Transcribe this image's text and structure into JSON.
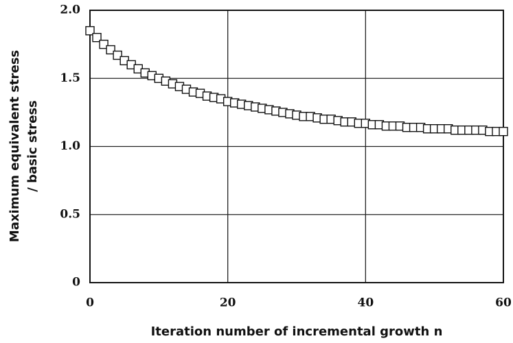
{
  "chart_data": {
    "type": "scatter",
    "xlabel": "Iteration number of incremental growth n",
    "ylabel": [
      "Maximum equivalent stress",
      "/ basic stress"
    ],
    "x": [
      0,
      1,
      2,
      3,
      4,
      5,
      6,
      7,
      8,
      9,
      10,
      11,
      12,
      13,
      14,
      15,
      16,
      17,
      18,
      19,
      20,
      21,
      22,
      23,
      24,
      25,
      26,
      27,
      28,
      29,
      30,
      31,
      32,
      33,
      34,
      35,
      36,
      37,
      38,
      39,
      40,
      41,
      42,
      43,
      44,
      45,
      46,
      47,
      48,
      49,
      50,
      51,
      52,
      53,
      54,
      55,
      56,
      57,
      58,
      59,
      60
    ],
    "series": [
      {
        "name": "stress",
        "color": "#111111",
        "values": [
          1.85,
          1.8,
          1.75,
          1.71,
          1.67,
          1.63,
          1.6,
          1.57,
          1.54,
          1.52,
          1.5,
          1.48,
          1.46,
          1.44,
          1.42,
          1.4,
          1.39,
          1.37,
          1.36,
          1.35,
          1.33,
          1.32,
          1.31,
          1.3,
          1.29,
          1.28,
          1.27,
          1.26,
          1.25,
          1.24,
          1.23,
          1.22,
          1.22,
          1.21,
          1.2,
          1.2,
          1.19,
          1.18,
          1.18,
          1.17,
          1.17,
          1.16,
          1.16,
          1.15,
          1.15,
          1.15,
          1.14,
          1.14,
          1.14,
          1.13,
          1.13,
          1.13,
          1.13,
          1.12,
          1.12,
          1.12,
          1.12,
          1.12,
          1.11,
          1.11,
          1.11
        ]
      }
    ],
    "xlim": [
      0,
      60
    ],
    "xticks": [
      0,
      20,
      40,
      60
    ],
    "ylim": [
      0,
      2
    ],
    "yticks": [
      0,
      0.5,
      {
        "value": 1,
        "label": "1.0"
      },
      1.5,
      {
        "value": 2,
        "label": "2.0"
      }
    ],
    "grid": true
  }
}
